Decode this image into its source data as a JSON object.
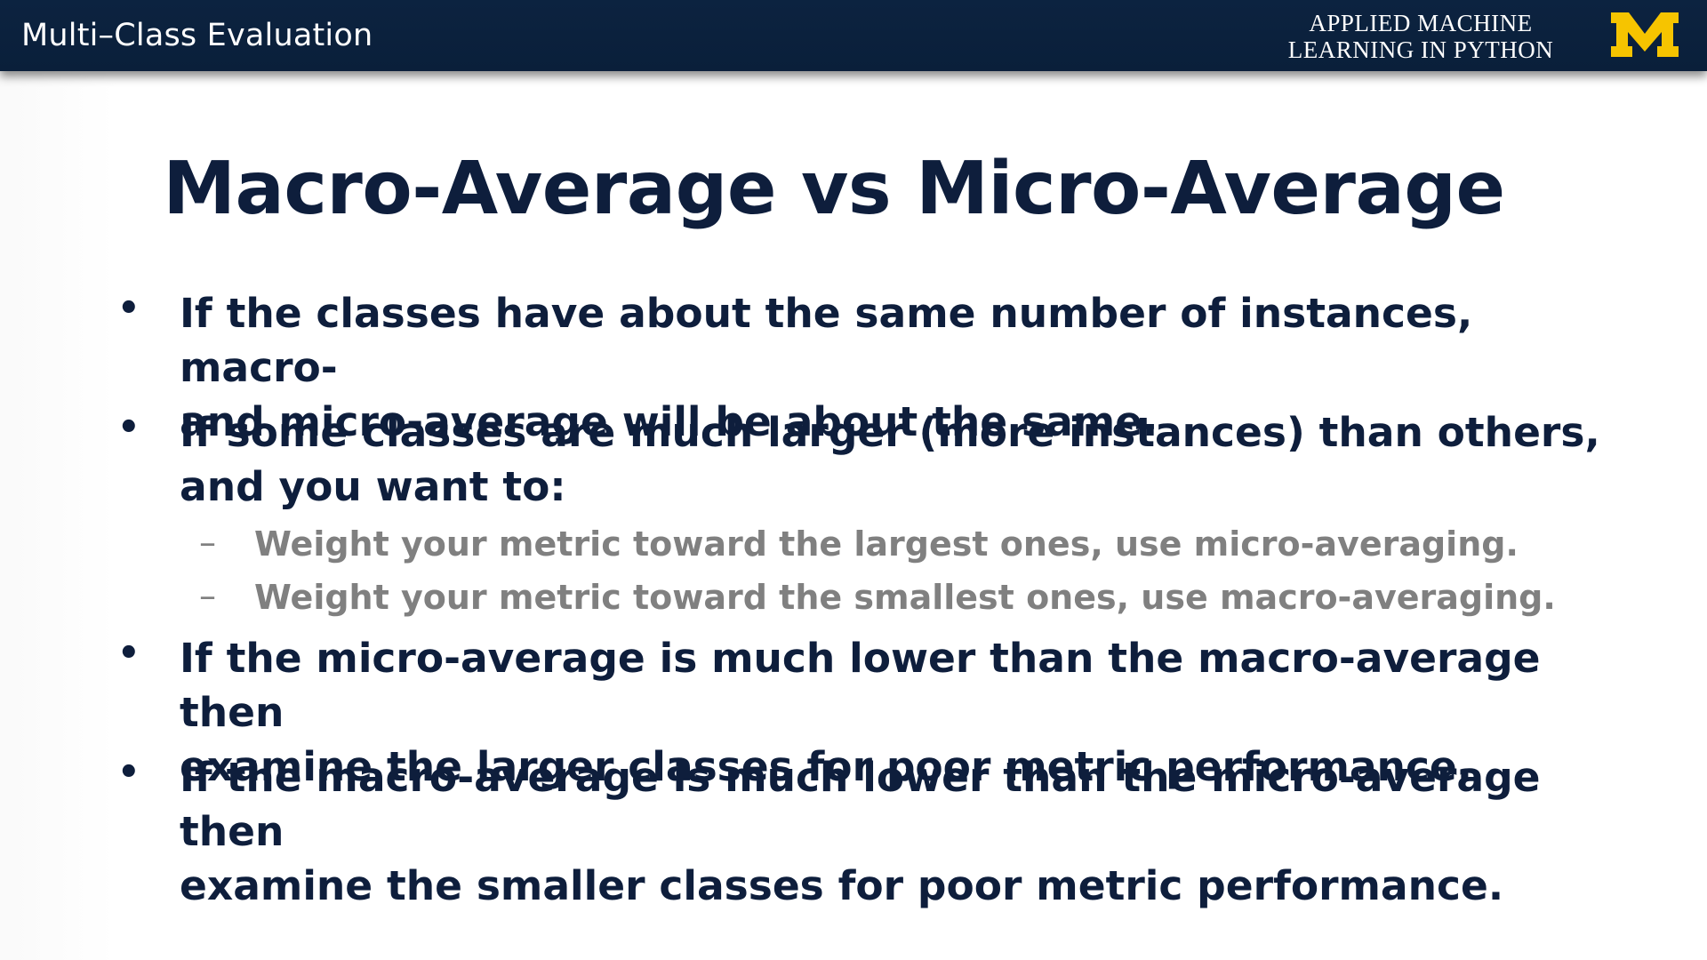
{
  "header": {
    "title": "Multi–Class Evaluation",
    "course_line1": "APPLIED MACHINE",
    "course_line2": "LEARNING IN PYTHON",
    "logo_text": "M",
    "colors": {
      "bar": "#0c2340",
      "logo": "#f6c400",
      "text": "#ffffff"
    }
  },
  "slide": {
    "title": "Macro-Average vs Micro-Average",
    "bullet_glyph": "•",
    "dash_glyph": "–",
    "bullets": [
      {
        "line1": "If the classes have about the same number of instances, macro-",
        "line2": "and micro-average will be about the same."
      },
      {
        "line1": "If some classes are much larger (more instances) than others,",
        "line2": "and you want to:",
        "sub": [
          "Weight your metric toward the largest ones, use micro-averaging.",
          "Weight your metric toward the smallest ones, use macro-averaging."
        ]
      },
      {
        "line1": "If the micro-average is much lower than the macro-average then",
        "line2": "examine the larger classes for poor metric performance."
      },
      {
        "line1": "If the macro-average is much lower than the micro-average then",
        "line2": "examine the smaller classes for poor metric performance."
      }
    ],
    "colors": {
      "primary_text": "#0e1e3c",
      "sub_text": "#808080"
    }
  }
}
